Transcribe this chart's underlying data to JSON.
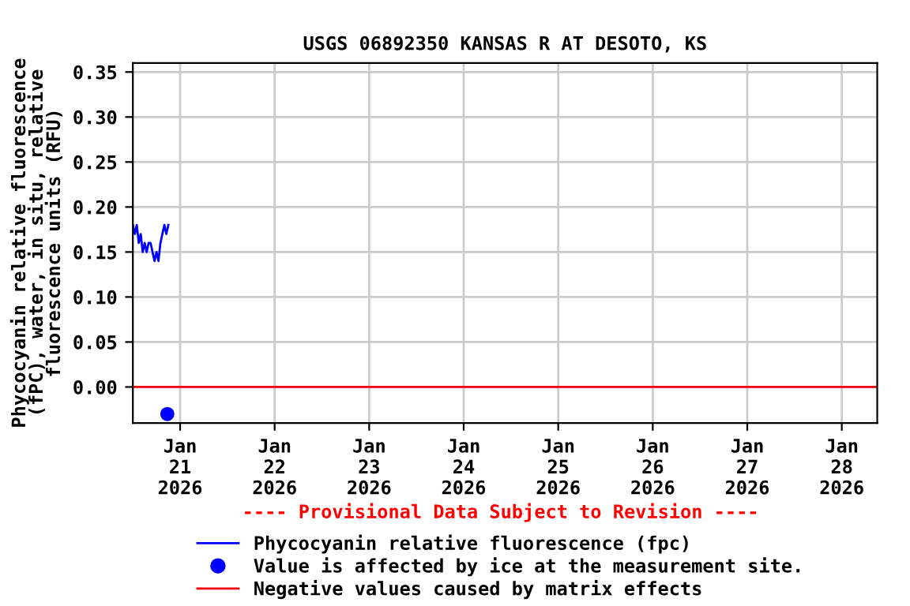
{
  "chart_data": {
    "type": "line",
    "title": "USGS 06892350 KANSAS R AT DESOTO, KS",
    "ylabel": "Phycocyanin relative fluorescence\n(fPC), water, in situ, relative\nfluorescence units (RFU)",
    "annotations": [
      "---- Provisional Data Subject to Revision ----"
    ],
    "xlim": [
      "2026-01-20T12:00",
      "2026-01-28T09:00"
    ],
    "xticks": [
      {
        "value": "2026-01-21",
        "label": "Jan\n21\n2026"
      },
      {
        "value": "2026-01-22",
        "label": "Jan\n22\n2026"
      },
      {
        "value": "2026-01-23",
        "label": "Jan\n23\n2026"
      },
      {
        "value": "2026-01-24",
        "label": "Jan\n24\n2026"
      },
      {
        "value": "2026-01-25",
        "label": "Jan\n25\n2026"
      },
      {
        "value": "2026-01-26",
        "label": "Jan\n26\n2026"
      },
      {
        "value": "2026-01-27",
        "label": "Jan\n27\n2026"
      },
      {
        "value": "2026-01-28",
        "label": "Jan\n28\n2026"
      }
    ],
    "ylim": [
      -0.04,
      0.36
    ],
    "yticks": [
      {
        "value": 0,
        "label": "0.00"
      },
      {
        "value": 0.05,
        "label": "0.05"
      },
      {
        "value": 0.1,
        "label": "0.10"
      },
      {
        "value": 0.15,
        "label": "0.15"
      },
      {
        "value": 0.2,
        "label": "0.20"
      },
      {
        "value": 0.25,
        "label": "0.25"
      },
      {
        "value": 0.3,
        "label": "0.30"
      },
      {
        "value": 0.35,
        "label": "0.35"
      }
    ],
    "grid": true,
    "legend": "bottom",
    "series": [
      {
        "name": "Phycocyanin relative fluorescence (fpc)",
        "color": "#0000ff",
        "x": [
          "2026-01-20T12:00",
          "2026-01-20T12:30",
          "2026-01-20T13:00",
          "2026-01-20T13:30",
          "2026-01-20T14:00",
          "2026-01-20T14:30",
          "2026-01-20T15:00",
          "2026-01-20T15:30",
          "2026-01-20T16:00",
          "2026-01-20T16:30",
          "2026-01-20T17:00",
          "2026-01-20T17:30",
          "2026-01-20T18:00",
          "2026-01-20T18:30",
          "2026-01-20T19:00",
          "2026-01-20T19:30",
          "2026-01-20T20:00",
          "2026-01-20T20:30",
          "2026-01-20T21:00"
        ],
        "values": [
          0.18,
          0.17,
          0.18,
          0.16,
          0.17,
          0.15,
          0.16,
          0.15,
          0.16,
          0.16,
          0.15,
          0.14,
          0.15,
          0.14,
          0.16,
          0.17,
          0.18,
          0.17,
          0.18
        ]
      },
      {
        "name": "Value is affected by ice at the measurement site.",
        "type": "scatter",
        "marker": "circle",
        "color": "#0000ff",
        "x": [
          "2026-01-20T20:45"
        ],
        "values": [
          -0.03
        ]
      },
      {
        "name": "Negative values caused by matrix effects",
        "color": "#ff0000",
        "x": [
          "2026-01-20T12:00",
          "2026-01-28T09:00"
        ],
        "values": [
          0,
          0
        ]
      }
    ]
  }
}
